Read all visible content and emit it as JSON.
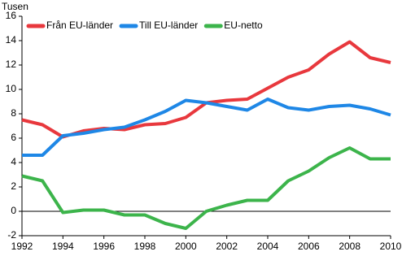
{
  "chart_data": {
    "type": "line",
    "y_label": "Tusen",
    "x": [
      1992,
      1993,
      1994,
      1995,
      1996,
      1997,
      1998,
      1999,
      2000,
      2001,
      2002,
      2003,
      2004,
      2005,
      2006,
      2007,
      2008,
      2009,
      2010
    ],
    "series": [
      {
        "name": "Från EU-länder",
        "color": "#e8383d",
        "values": [
          7.5,
          7.1,
          6.1,
          6.6,
          6.8,
          6.7,
          7.1,
          7.2,
          7.7,
          8.9,
          9.1,
          9.2,
          10.1,
          11.0,
          11.6,
          12.9,
          13.9,
          12.6,
          12.2
        ]
      },
      {
        "name": "Till EU-länder",
        "color": "#1e87e6",
        "values": [
          4.6,
          4.6,
          6.2,
          6.4,
          6.7,
          6.9,
          7.5,
          8.2,
          9.1,
          8.9,
          8.6,
          8.3,
          9.2,
          8.5,
          8.3,
          8.6,
          8.7,
          8.4,
          7.9
        ]
      },
      {
        "name": "EU-netto",
        "color": "#3cb44b",
        "values": [
          2.9,
          2.5,
          -0.1,
          0.1,
          0.1,
          -0.3,
          -0.3,
          -1.0,
          -1.4,
          0.0,
          0.5,
          0.9,
          0.9,
          2.5,
          3.3,
          4.4,
          5.2,
          4.3,
          4.3
        ]
      }
    ],
    "xlim": [
      1992,
      2010
    ],
    "xticks": [
      1992,
      1994,
      1996,
      1998,
      2000,
      2002,
      2004,
      2006,
      2008,
      2010
    ],
    "ylim": [
      -2,
      16
    ],
    "yticks": [
      -2,
      0,
      2,
      4,
      6,
      8,
      10,
      12,
      14,
      16
    ],
    "legend": "top-left"
  }
}
